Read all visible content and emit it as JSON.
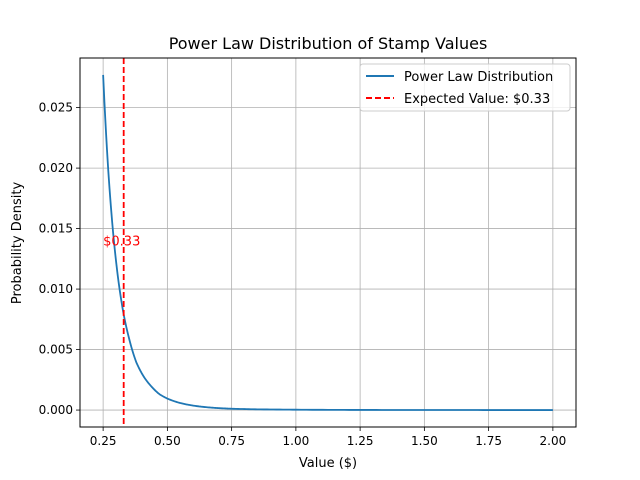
{
  "chart_data": {
    "type": "line",
    "title": "Power Law Distribution of Stamp Values",
    "xlabel": "Value ($)",
    "ylabel": "Probability Density",
    "xlim": [
      0.16,
      2.09
    ],
    "ylim": [
      -0.0014,
      0.0291
    ],
    "x_ticks": [
      0.25,
      0.5,
      0.75,
      1.0,
      1.25,
      1.5,
      1.75,
      2.0
    ],
    "x_tick_labels": [
      "0.25",
      "0.50",
      "0.75",
      "1.00",
      "1.25",
      "1.50",
      "1.75",
      "2.00"
    ],
    "y_ticks": [
      0.0,
      0.005,
      0.01,
      0.015,
      0.02,
      0.025
    ],
    "y_tick_labels": [
      "0.000",
      "0.005",
      "0.010",
      "0.015",
      "0.020",
      "0.025"
    ],
    "grid": true,
    "legend_position": "top-right",
    "series": [
      {
        "name": "Power Law Distribution",
        "color": "#1f77b4",
        "x": [
          0.25,
          0.27,
          0.29,
          0.31,
          0.33,
          0.35,
          0.38,
          0.41,
          0.44,
          0.47,
          0.5,
          0.55,
          0.6,
          0.65,
          0.7,
          0.75,
          0.85,
          1.0,
          1.25,
          1.5,
          1.75,
          2.0
        ],
        "y": [
          0.0277,
          0.0198,
          0.0144,
          0.0106,
          0.0079,
          0.006,
          0.0039,
          0.0027,
          0.0019,
          0.0013,
          0.00095,
          0.00058,
          0.00037,
          0.00024,
          0.00016,
          0.00011,
          6e-05,
          3e-05,
          1e-05,
          5e-06,
          2e-06,
          1e-06
        ]
      }
    ],
    "reference_lines": [
      {
        "x": 0.33,
        "label": "Expected Value: $0.33",
        "color": "#ff0000",
        "style": "dashed"
      }
    ],
    "annotations": [
      {
        "text": "$0.33",
        "x": 0.25,
        "y": 0.014,
        "color": "#ff0000"
      }
    ]
  }
}
